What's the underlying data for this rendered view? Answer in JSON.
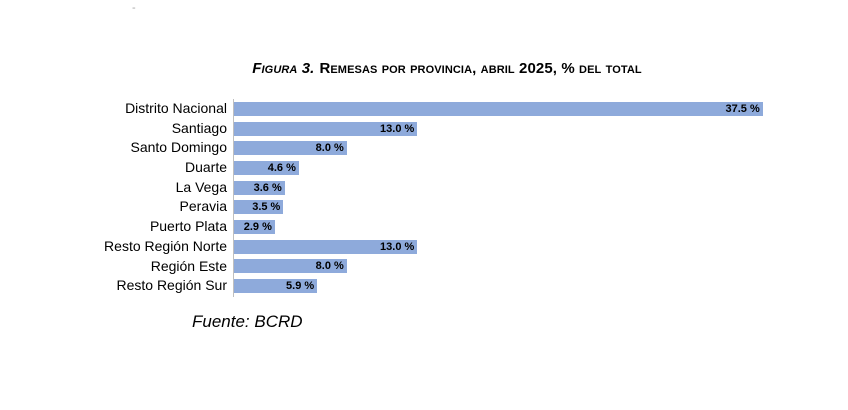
{
  "title": {
    "prefix": "Figura 3.",
    "text": "Remesas por provincia, abril 2025, % del total"
  },
  "source_label": "Fuente: BCRD",
  "stray_mark": "-",
  "chart_data": {
    "type": "bar",
    "orientation": "horizontal",
    "title": "Figura 3. Remesas por provincia, abril 2025, % del total",
    "categories": [
      "Distrito Nacional",
      "Santiago",
      "Santo Domingo",
      "Duarte",
      "La Vega",
      "Peravia",
      "Puerto Plata",
      "Resto Región Norte",
      "Región Este",
      "Resto Región Sur"
    ],
    "values": [
      37.5,
      13.0,
      8.0,
      4.6,
      3.6,
      3.5,
      2.9,
      13.0,
      8.0,
      5.9
    ],
    "value_labels": [
      "37.5 %",
      "13.0 %",
      "8.0 %",
      "4.6 %",
      "3.6 %",
      "3.5 %",
      "2.9 %",
      "13.0 %",
      "8.0 %",
      "5.9 %"
    ],
    "xlabel": "",
    "ylabel": "",
    "xlim": [
      0,
      40
    ],
    "grid": false,
    "legend": false,
    "data_label_position": "inside-end",
    "bar_color": "#8EAADB",
    "axis_line_color": "#BFBFBF",
    "source": "Fuente: BCRD"
  }
}
